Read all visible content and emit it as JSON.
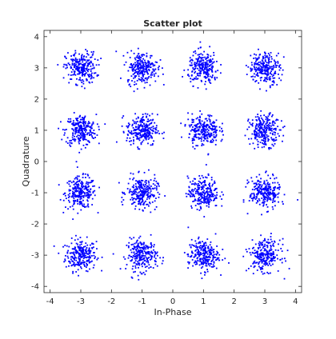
{
  "chart_data": {
    "type": "scatter",
    "title": "Scatter plot",
    "xlabel": "In-Phase",
    "ylabel": "Quadrature",
    "xlim": [
      -4.2,
      4.2
    ],
    "ylim": [
      -4.2,
      4.2
    ],
    "xticks": [
      -4,
      -3,
      -2,
      -1,
      0,
      1,
      2,
      3,
      4
    ],
    "yticks": [
      -4,
      -3,
      -2,
      -1,
      0,
      1,
      2,
      3,
      4
    ],
    "xtick_labels": [
      "-4",
      "-3",
      "-2",
      "-1",
      "0",
      "1",
      "2",
      "3",
      "4"
    ],
    "ytick_labels": [
      "-4",
      "-3",
      "-2",
      "-1",
      "0",
      "1",
      "2",
      "3",
      "4"
    ],
    "grid": false,
    "marker_color": "#0000ff",
    "constellation": {
      "i_levels": [
        -3,
        -1,
        1,
        3
      ],
      "q_levels": [
        -3,
        -1,
        1,
        3
      ],
      "points_per_symbol": 250,
      "noise_std": 0.25
    }
  }
}
